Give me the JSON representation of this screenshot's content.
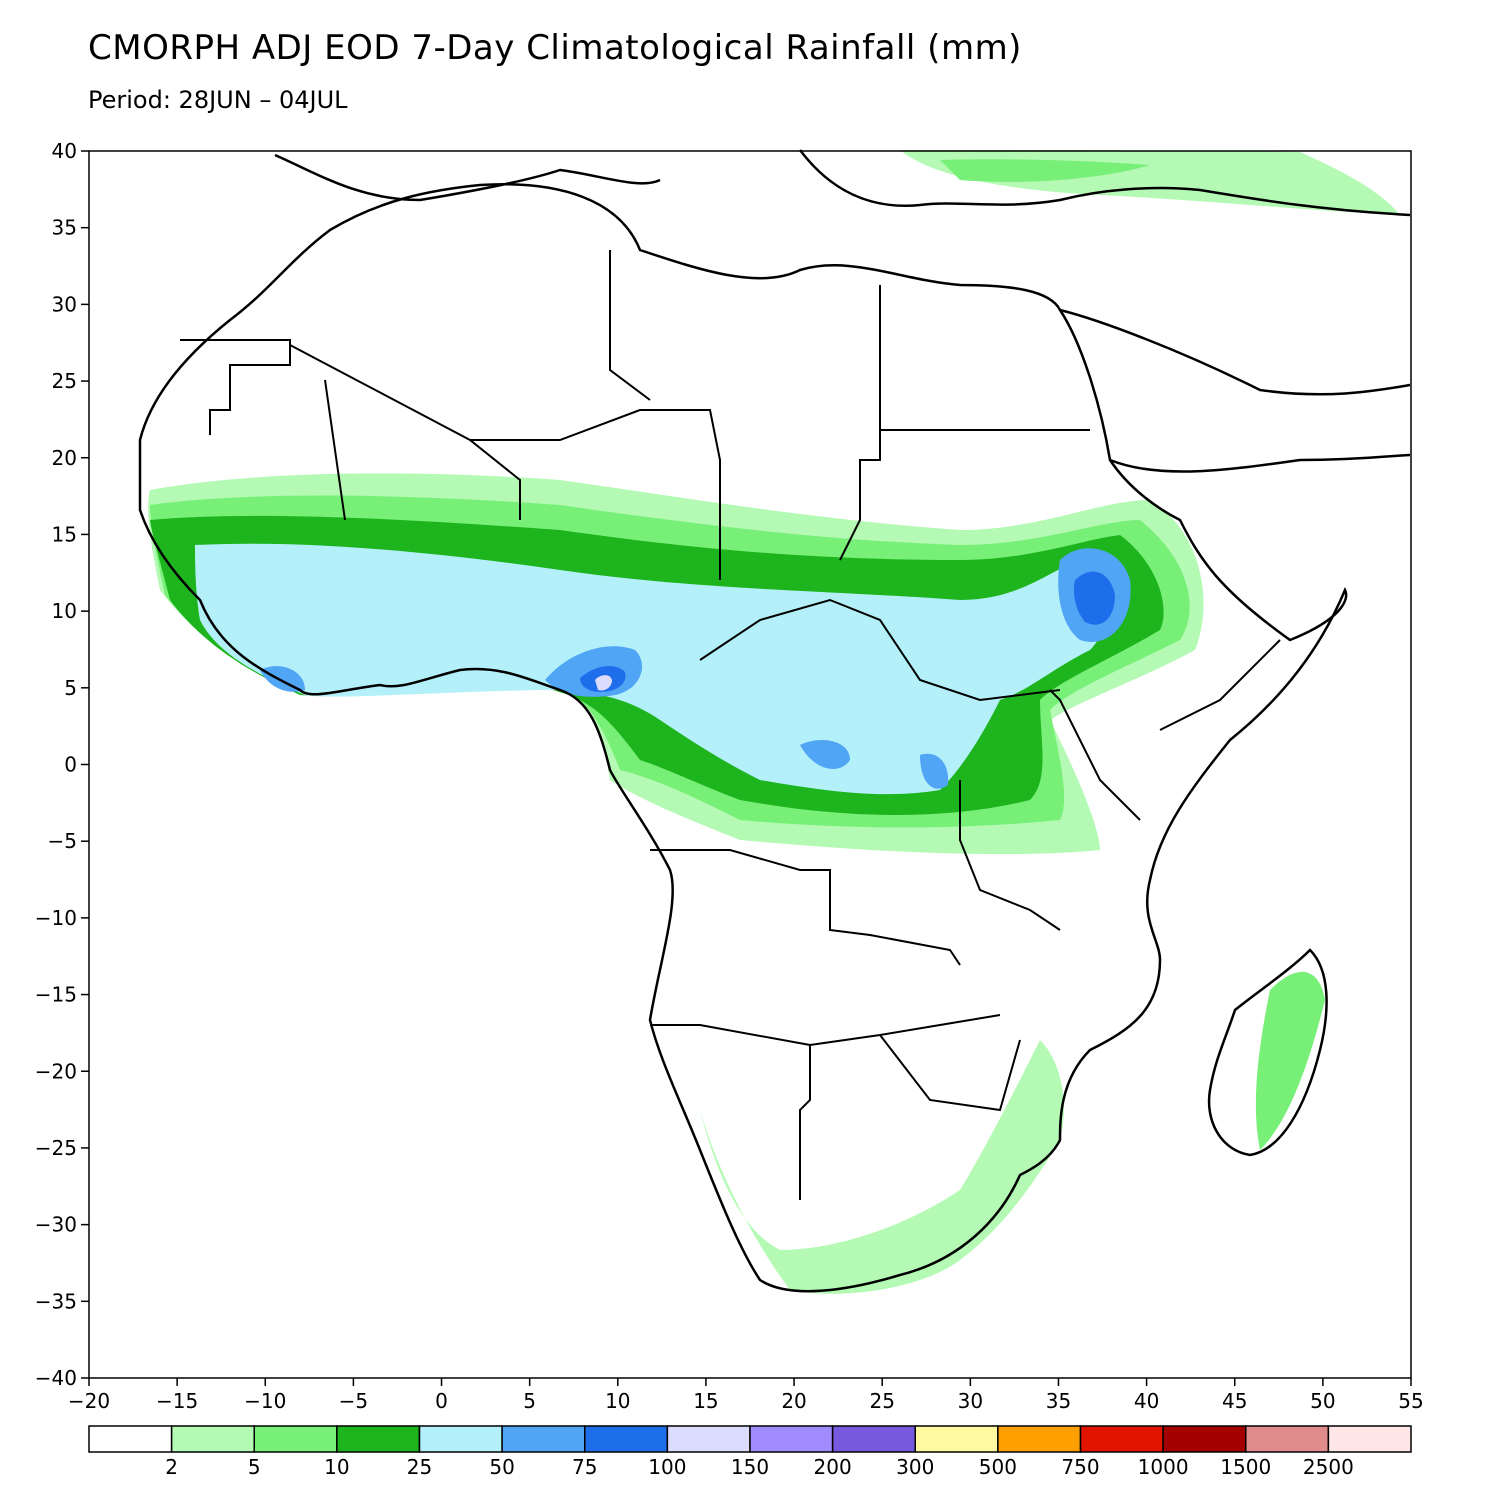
{
  "title": "CMORPH ADJ EOD 7-Day Climatological Rainfall (mm)",
  "subtitle": "Period: 28JUN – 04JUL",
  "map": {
    "lon_range": [
      -20,
      55
    ],
    "lat_range": [
      -40,
      40
    ],
    "x_ticks": [
      "−20",
      "−15",
      "−10",
      "−5",
      "0",
      "5",
      "10",
      "15",
      "20",
      "25",
      "30",
      "35",
      "40",
      "45",
      "50",
      "55"
    ],
    "y_ticks": [
      "40",
      "35",
      "30",
      "25",
      "20",
      "15",
      "10",
      "5",
      "0",
      "−5",
      "−10",
      "−15",
      "−20",
      "−25",
      "−30",
      "−35",
      "−40"
    ]
  },
  "legend": {
    "colors": [
      "#ffffff",
      "#b4fab4",
      "#78f078",
      "#1eb41e",
      "#b4f0fa",
      "#50a5f5",
      "#1e6eeb",
      "#dcdcff",
      "#a08cff",
      "#785ae1",
      "#fffaa0",
      "#ffa000",
      "#e11400",
      "#a50000",
      "#e18c8c",
      "#ffe6e6"
    ],
    "labels": [
      "2",
      "5",
      "10",
      "25",
      "50",
      "75",
      "100",
      "150",
      "200",
      "300",
      "500",
      "750",
      "1000",
      "1500",
      "2500"
    ]
  }
}
